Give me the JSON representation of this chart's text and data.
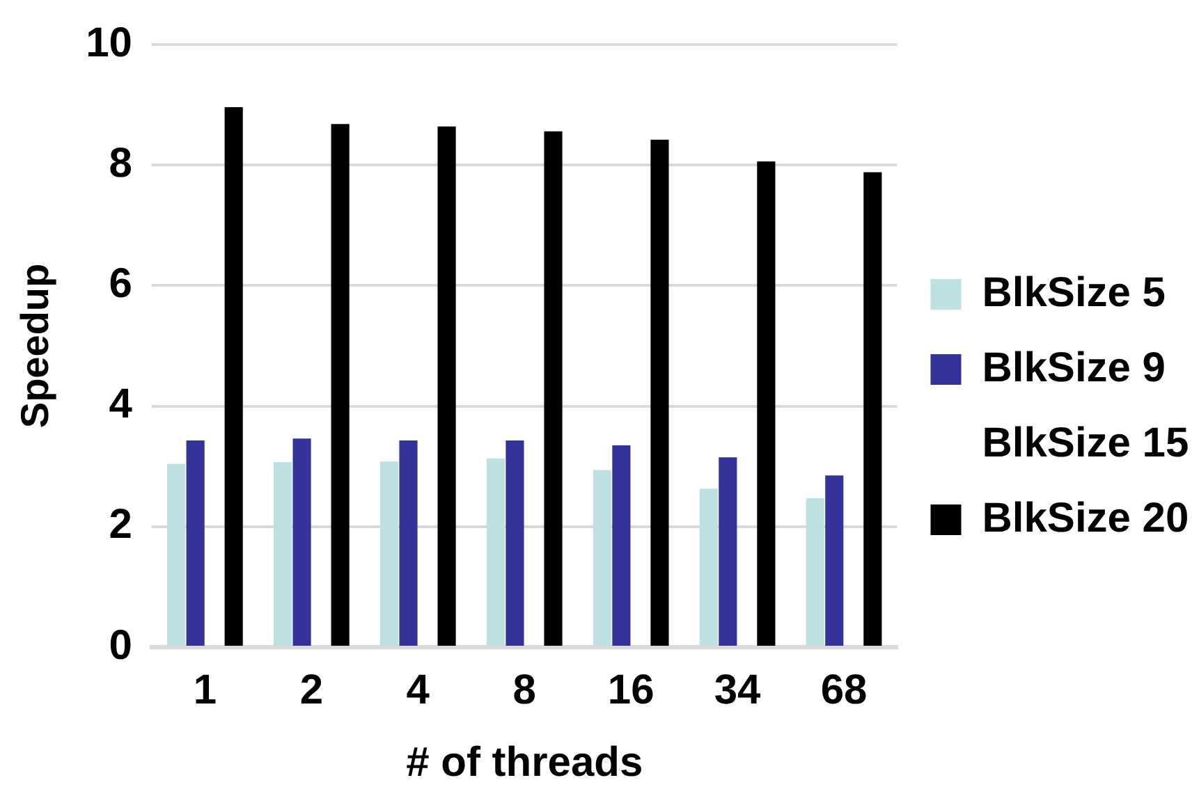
{
  "chart_data": {
    "type": "bar",
    "xlabel": "# of threads",
    "ylabel": "Speedup",
    "categories": [
      "1",
      "2",
      "4",
      "8",
      "16",
      "34",
      "68"
    ],
    "series": [
      {
        "name": "BlkSize 5",
        "color": "#bde0e3",
        "values": [
          3.04,
          3.07,
          3.08,
          3.13,
          2.94,
          2.63,
          2.47
        ]
      },
      {
        "name": "BlkSize 9",
        "color": "#343399",
        "values": [
          3.43,
          3.46,
          3.43,
          3.43,
          3.35,
          3.15,
          2.85
        ]
      },
      {
        "name": "BlkSize 15",
        "values": [
          null,
          null,
          null,
          null,
          null,
          null,
          null
        ]
      },
      {
        "name": "BlkSize 20",
        "color": "#000000",
        "values": [
          8.96,
          8.68,
          8.64,
          8.56,
          8.42,
          8.06,
          7.88
        ]
      }
    ],
    "ylim": [
      0,
      10
    ],
    "yticks": [
      0,
      2,
      4,
      6,
      8,
      10
    ],
    "grid": "y",
    "legend": "right"
  }
}
